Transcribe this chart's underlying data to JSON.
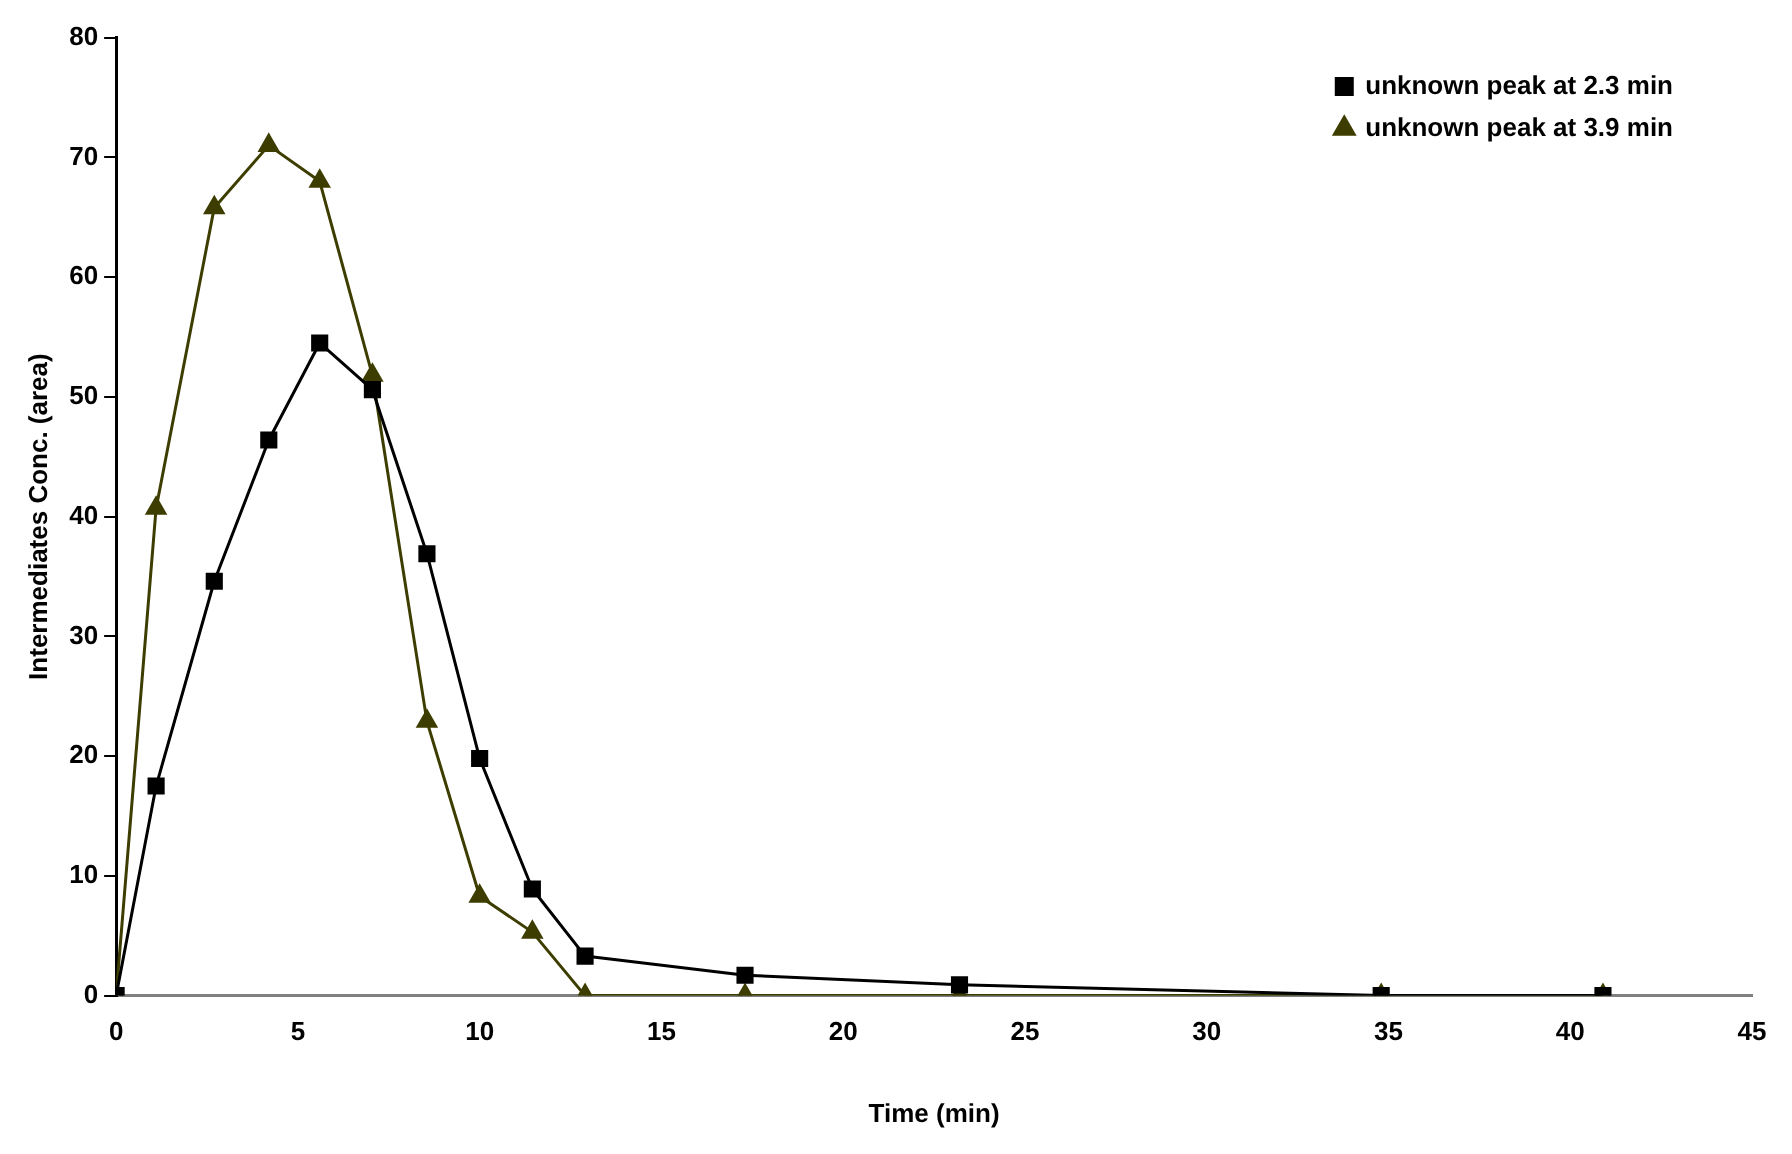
{
  "chart_data": {
    "type": "line",
    "xlabel": "Time (min)",
    "ylabel": "Intermediates Conc. (area)",
    "x": [
      0,
      1.1,
      2.7,
      4.2,
      5.6,
      7.05,
      8.55,
      10,
      11.45,
      12.9,
      17.3,
      23.2,
      34.8,
      40.9
    ],
    "series": [
      {
        "name": "unknown peak at 2.3 min",
        "color": "#000000",
        "marker": "square",
        "values": [
          0,
          17.5,
          34.6,
          46.4,
          54.5,
          50.6,
          36.9,
          19.8,
          8.9,
          3.3,
          1.7,
          0.9,
          0,
          0
        ]
      },
      {
        "name": "unknown peak at 3.9 min",
        "color": "#3d3d00",
        "marker": "triangle",
        "values": [
          0,
          40.7,
          65.8,
          71.0,
          68.0,
          51.8,
          22.9,
          8.3,
          5.3,
          0,
          0,
          0,
          0,
          0
        ]
      }
    ],
    "xlim": [
      0,
      45
    ],
    "xticks": [
      0,
      5,
      10,
      15,
      20,
      25,
      30,
      35,
      40,
      45
    ],
    "ylim": [
      0,
      80
    ],
    "yticks": [
      0,
      10,
      20,
      30,
      40,
      50,
      60,
      70,
      80
    ],
    "grid": false,
    "legend": "top right",
    "line_style": "solid"
  }
}
